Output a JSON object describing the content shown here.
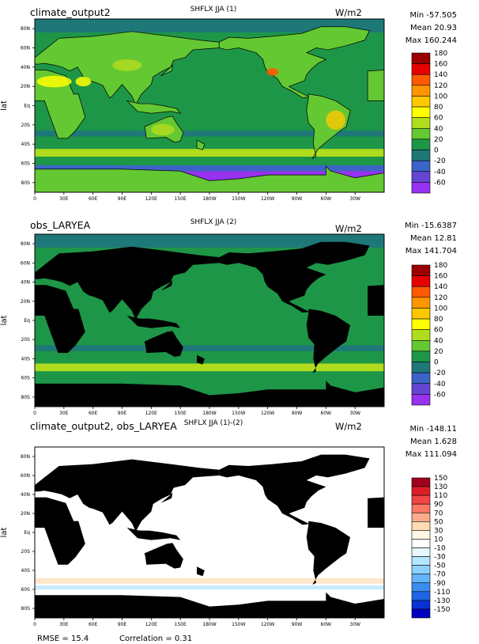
{
  "chart_data": [
    {
      "type": "heatmap",
      "title": "climate_output2",
      "center_title": "SHFLX JJA (1)",
      "units": "W/m2",
      "stats": {
        "min": "Min -57.505",
        "mean": "Mean 20.93",
        "max": "Max 160.244"
      },
      "ylabel": "lat",
      "xticks": [
        "0",
        "30E",
        "60E",
        "90E",
        "120E",
        "150E",
        "180W",
        "150W",
        "120W",
        "90W",
        "60W",
        "30W"
      ],
      "yticks": [
        "80N",
        "60N",
        "40N",
        "20N",
        "Eq",
        "20S",
        "40S",
        "60S",
        "80S"
      ],
      "xlim": [
        0,
        360
      ],
      "ylim": [
        -90,
        90
      ],
      "colorbar": {
        "levels": [
          "180",
          "160",
          "140",
          "120",
          "100",
          "80",
          "60",
          "40",
          "20",
          "0",
          "-20",
          "-40",
          "-60"
        ],
        "colors": [
          "#9b0000",
          "#e60000",
          "#ff5a00",
          "#ff9600",
          "#ffc800",
          "#ffff00",
          "#b0dc1e",
          "#64c832",
          "#1e9648",
          "#1e7878",
          "#3c64c8",
          "#6446d2",
          "#9632f0"
        ]
      },
      "land_masked": false
    },
    {
      "type": "heatmap",
      "title": "obs_LARYEA",
      "center_title": "SHFLX JJA (2)",
      "units": "W/m2",
      "stats": {
        "min": "Min -15.6387",
        "mean": "Mean 12.81",
        "max": "Max 141.704"
      },
      "ylabel": "lat",
      "xticks": [
        "0",
        "30E",
        "60E",
        "90E",
        "120E",
        "150E",
        "180W",
        "150W",
        "120W",
        "90W",
        "60W",
        "30W"
      ],
      "yticks": [
        "80N",
        "60N",
        "40N",
        "20N",
        "Eq",
        "20S",
        "40S",
        "60S",
        "80S"
      ],
      "xlim": [
        0,
        360
      ],
      "ylim": [
        -90,
        90
      ],
      "colorbar": {
        "levels": [
          "180",
          "160",
          "140",
          "120",
          "100",
          "80",
          "60",
          "40",
          "20",
          "0",
          "-20",
          "-40",
          "-60"
        ],
        "colors": [
          "#9b0000",
          "#e60000",
          "#ff5a00",
          "#ff9600",
          "#ffc800",
          "#ffff00",
          "#b0dc1e",
          "#64c832",
          "#1e9648",
          "#1e7878",
          "#3c64c8",
          "#6446d2",
          "#9632f0"
        ]
      },
      "land_masked": true
    },
    {
      "type": "heatmap",
      "title": "climate_output2, obs_LARYEA",
      "center_title": "SHFLX JJA (1)-(2)",
      "units": "W/m2",
      "stats": {
        "min": "Min -148.11",
        "mean": "Mean 1.628",
        "max": "Max 111.094"
      },
      "ylabel": "lat",
      "xticks": [
        "0",
        "30E",
        "60E",
        "90E",
        "120E",
        "150E",
        "180W",
        "150W",
        "120W",
        "90W",
        "60W",
        "30W"
      ],
      "yticks": [
        "80N",
        "60N",
        "40N",
        "20N",
        "Eq",
        "20S",
        "40S",
        "60S",
        "80S"
      ],
      "xlim": [
        0,
        360
      ],
      "ylim": [
        -90,
        90
      ],
      "colorbar": {
        "levels": [
          "150",
          "130",
          "110",
          "90",
          "70",
          "50",
          "30",
          "10",
          "-10",
          "-30",
          "-50",
          "-70",
          "-90",
          "-110",
          "-130",
          "-150"
        ],
        "colors": [
          "#a0001e",
          "#dc1e28",
          "#f04646",
          "#fa7864",
          "#fcaa8c",
          "#ffdcb4",
          "#fff8e6",
          "#ffffff",
          "#e6f8ff",
          "#b4e6ff",
          "#8cd2ff",
          "#64b4fa",
          "#3c8cf0",
          "#1e64e6",
          "#0a32d2",
          "#0000be"
        ]
      },
      "land_masked": true,
      "footer": {
        "rmse": "RMSE = 15.4",
        "correlation": "Correlation = 0.31"
      }
    }
  ]
}
